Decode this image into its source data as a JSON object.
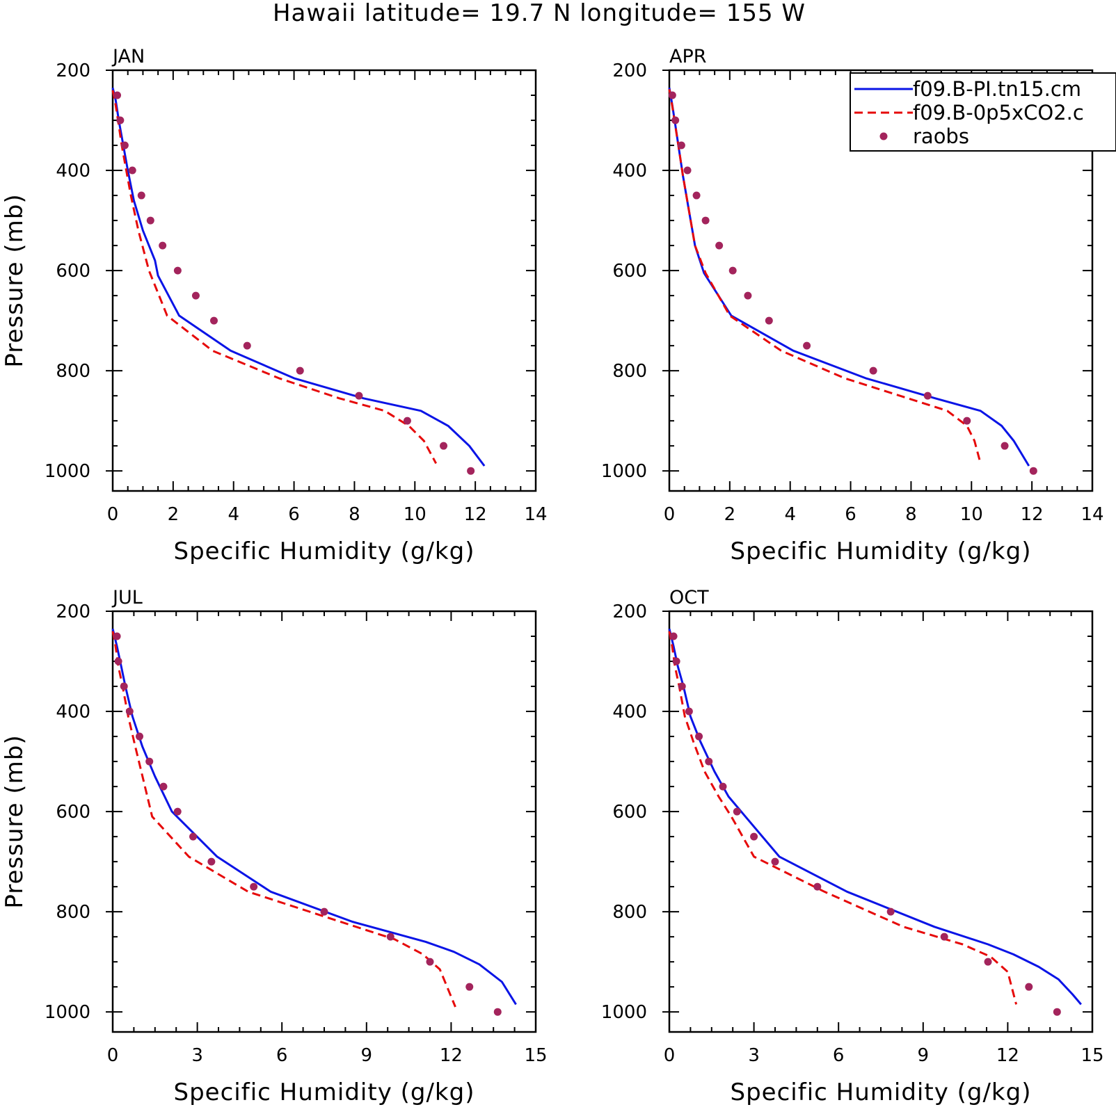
{
  "title": "Hawaii  latitude= 19.7 N longitude= 155 W",
  "legend": {
    "entries": [
      {
        "label": "f09.B-PI.tn15.cm",
        "color": "#0a14e6",
        "style": "solid"
      },
      {
        "label": "f09.B-0p5xCO2.c",
        "color": "#e60a0a",
        "style": "dashed"
      },
      {
        "label": "raobs",
        "color": "#a3245c",
        "style": "dot"
      }
    ]
  },
  "chart_data": [
    {
      "type": "line",
      "panel": "JAN",
      "xlabel": "Specific Humidity (g/kg)",
      "ylabel": "Pressure (mb)",
      "xlim": [
        0,
        14
      ],
      "ylim": [
        1040,
        200
      ],
      "xticks": [
        0,
        2,
        4,
        6,
        8,
        10,
        12,
        14
      ],
      "yticks": [
        200,
        400,
        600,
        800,
        1000
      ],
      "series": [
        {
          "name": "f09.B-PI.tn15.cm",
          "points": [
            [
              0.0,
              235
            ],
            [
              0.1,
              260
            ],
            [
              0.2,
              300
            ],
            [
              0.35,
              350
            ],
            [
              0.5,
              400
            ],
            [
              0.7,
              460
            ],
            [
              1.0,
              520
            ],
            [
              1.4,
              580
            ],
            [
              1.5,
              610
            ],
            [
              2.2,
              690
            ],
            [
              3.9,
              760
            ],
            [
              6.0,
              815
            ],
            [
              8.3,
              855
            ],
            [
              10.2,
              880
            ],
            [
              11.1,
              910
            ],
            [
              11.8,
              950
            ],
            [
              12.3,
              990
            ]
          ]
        },
        {
          "name": "f09.B-0p5xCO2.c",
          "points": [
            [
              0.0,
              240
            ],
            [
              0.1,
              270
            ],
            [
              0.2,
              310
            ],
            [
              0.3,
              350
            ],
            [
              0.45,
              400
            ],
            [
              0.6,
              450
            ],
            [
              0.85,
              520
            ],
            [
              1.2,
              600
            ],
            [
              1.8,
              690
            ],
            [
              3.3,
              760
            ],
            [
              5.5,
              815
            ],
            [
              7.5,
              855
            ],
            [
              9.0,
              880
            ],
            [
              9.8,
              910
            ],
            [
              10.3,
              940
            ],
            [
              10.7,
              985
            ]
          ]
        },
        {
          "name": "raobs",
          "points": [
            [
              0.15,
              250
            ],
            [
              0.25,
              300
            ],
            [
              0.4,
              350
            ],
            [
              0.65,
              400
            ],
            [
              0.95,
              450
            ],
            [
              1.25,
              500
            ],
            [
              1.65,
              550
            ],
            [
              2.15,
              600
            ],
            [
              2.75,
              650
            ],
            [
              3.35,
              700
            ],
            [
              4.45,
              750
            ],
            [
              6.2,
              800
            ],
            [
              8.15,
              850
            ],
            [
              9.75,
              900
            ],
            [
              10.95,
              950
            ],
            [
              11.85,
              1000
            ]
          ]
        }
      ]
    },
    {
      "type": "line",
      "panel": "APR",
      "xlabel": "Specific Humidity (g/kg)",
      "ylabel": "",
      "xlim": [
        0,
        14
      ],
      "ylim": [
        1040,
        200
      ],
      "xticks": [
        0,
        2,
        4,
        6,
        8,
        10,
        12,
        14
      ],
      "yticks": [
        200,
        400,
        600,
        800,
        1000
      ],
      "series": [
        {
          "name": "f09.B-PI.tn15.cm",
          "points": [
            [
              0.0,
              235
            ],
            [
              0.1,
              270
            ],
            [
              0.2,
              310
            ],
            [
              0.3,
              350
            ],
            [
              0.45,
              410
            ],
            [
              0.65,
              480
            ],
            [
              0.85,
              550
            ],
            [
              1.15,
              605
            ],
            [
              2.05,
              690
            ],
            [
              4.1,
              760
            ],
            [
              6.5,
              815
            ],
            [
              8.8,
              855
            ],
            [
              10.3,
              880
            ],
            [
              11.0,
              910
            ],
            [
              11.4,
              940
            ],
            [
              11.9,
              990
            ]
          ]
        },
        {
          "name": "f09.B-0p5xCO2.c",
          "points": [
            [
              0.0,
              238
            ],
            [
              0.1,
              272
            ],
            [
              0.2,
              312
            ],
            [
              0.3,
              350
            ],
            [
              0.45,
              410
            ],
            [
              0.65,
              480
            ],
            [
              0.85,
              550
            ],
            [
              1.2,
              605
            ],
            [
              2.0,
              690
            ],
            [
              3.7,
              760
            ],
            [
              5.8,
              815
            ],
            [
              7.9,
              855
            ],
            [
              9.2,
              880
            ],
            [
              9.85,
              910
            ],
            [
              10.1,
              940
            ],
            [
              10.3,
              985
            ]
          ]
        },
        {
          "name": "raobs",
          "points": [
            [
              0.1,
              250
            ],
            [
              0.2,
              300
            ],
            [
              0.4,
              350
            ],
            [
              0.6,
              400
            ],
            [
              0.9,
              450
            ],
            [
              1.2,
              500
            ],
            [
              1.65,
              550
            ],
            [
              2.1,
              600
            ],
            [
              2.6,
              650
            ],
            [
              3.3,
              700
            ],
            [
              4.55,
              750
            ],
            [
              6.75,
              800
            ],
            [
              8.55,
              850
            ],
            [
              9.85,
              900
            ],
            [
              11.1,
              950
            ],
            [
              12.05,
              1000
            ]
          ]
        }
      ]
    },
    {
      "type": "line",
      "panel": "JUL",
      "xlabel": "Specific Humidity (g/kg)",
      "ylabel": "Pressure (mb)",
      "xlim": [
        0,
        15
      ],
      "ylim": [
        1040,
        200
      ],
      "xticks": [
        0,
        3,
        6,
        9,
        12,
        15
      ],
      "yticks": [
        200,
        400,
        600,
        800,
        1000
      ],
      "series": [
        {
          "name": "f09.B-PI.tn15.cm",
          "points": [
            [
              0.0,
              235
            ],
            [
              0.15,
              270
            ],
            [
              0.3,
              310
            ],
            [
              0.45,
              350
            ],
            [
              0.7,
              410
            ],
            [
              1.05,
              470
            ],
            [
              1.5,
              530
            ],
            [
              2.1,
              600
            ],
            [
              3.7,
              690
            ],
            [
              5.6,
              760
            ],
            [
              8.5,
              820
            ],
            [
              11.1,
              860
            ],
            [
              12.1,
              880
            ],
            [
              13.0,
              905
            ],
            [
              13.8,
              940
            ],
            [
              14.3,
              985
            ]
          ]
        },
        {
          "name": "f09.B-0p5xCO2.c",
          "points": [
            [
              0.0,
              240
            ],
            [
              0.1,
              270
            ],
            [
              0.2,
              310
            ],
            [
              0.35,
              350
            ],
            [
              0.55,
              410
            ],
            [
              0.8,
              470
            ],
            [
              1.1,
              540
            ],
            [
              1.4,
              610
            ],
            [
              2.7,
              690
            ],
            [
              4.8,
              760
            ],
            [
              7.8,
              815
            ],
            [
              10.0,
              855
            ],
            [
              11.0,
              885
            ],
            [
              11.6,
              915
            ],
            [
              12.15,
              990
            ]
          ]
        },
        {
          "name": "raobs",
          "points": [
            [
              0.15,
              250
            ],
            [
              0.2,
              300
            ],
            [
              0.4,
              350
            ],
            [
              0.6,
              400
            ],
            [
              0.95,
              450
            ],
            [
              1.3,
              500
            ],
            [
              1.8,
              550
            ],
            [
              2.3,
              600
            ],
            [
              2.85,
              650
            ],
            [
              3.5,
              700
            ],
            [
              5.0,
              750
            ],
            [
              7.5,
              800
            ],
            [
              9.85,
              850
            ],
            [
              11.25,
              900
            ],
            [
              12.65,
              950
            ],
            [
              13.65,
              1000
            ]
          ]
        }
      ]
    },
    {
      "type": "line",
      "panel": "OCT",
      "xlabel": "Specific Humidity (g/kg)",
      "ylabel": "",
      "xlim": [
        0,
        15
      ],
      "ylim": [
        1040,
        200
      ],
      "xticks": [
        0,
        3,
        6,
        9,
        12,
        15
      ],
      "yticks": [
        200,
        400,
        600,
        800,
        1000
      ],
      "series": [
        {
          "name": "f09.B-PI.tn15.cm",
          "points": [
            [
              0.0,
              235
            ],
            [
              0.15,
              270
            ],
            [
              0.3,
              310
            ],
            [
              0.5,
              350
            ],
            [
              0.75,
              410
            ],
            [
              1.1,
              460
            ],
            [
              1.6,
              520
            ],
            [
              2.1,
              570
            ],
            [
              2.7,
              610
            ],
            [
              3.9,
              690
            ],
            [
              6.3,
              760
            ],
            [
              9.4,
              830
            ],
            [
              11.3,
              865
            ],
            [
              12.2,
              885
            ],
            [
              13.1,
              910
            ],
            [
              13.8,
              935
            ],
            [
              14.3,
              965
            ],
            [
              14.6,
              985
            ]
          ]
        },
        {
          "name": "f09.B-0p5xCO2.c",
          "points": [
            [
              0.0,
              240
            ],
            [
              0.1,
              270
            ],
            [
              0.2,
              310
            ],
            [
              0.35,
              350
            ],
            [
              0.55,
              410
            ],
            [
              0.85,
              460
            ],
            [
              1.25,
              520
            ],
            [
              1.75,
              570
            ],
            [
              2.2,
              610
            ],
            [
              3.0,
              690
            ],
            [
              5.5,
              760
            ],
            [
              8.3,
              830
            ],
            [
              10.4,
              865
            ],
            [
              11.4,
              890
            ],
            [
              12.0,
              920
            ],
            [
              12.3,
              985
            ]
          ]
        },
        {
          "name": "raobs",
          "points": [
            [
              0.15,
              250
            ],
            [
              0.25,
              300
            ],
            [
              0.45,
              350
            ],
            [
              0.7,
              400
            ],
            [
              1.05,
              450
            ],
            [
              1.4,
              500
            ],
            [
              1.9,
              550
            ],
            [
              2.4,
              600
            ],
            [
              3.0,
              650
            ],
            [
              3.75,
              700
            ],
            [
              5.25,
              750
            ],
            [
              7.85,
              800
            ],
            [
              9.75,
              850
            ],
            [
              11.3,
              900
            ],
            [
              12.75,
              950
            ],
            [
              13.75,
              1000
            ]
          ]
        }
      ]
    }
  ]
}
